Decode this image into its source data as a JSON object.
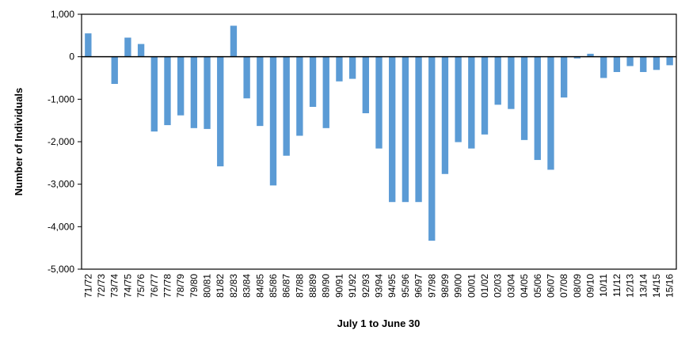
{
  "chart_data": {
    "type": "bar",
    "title": "",
    "xlabel": "July 1 to June 30",
    "ylabel": "Number of Individuals",
    "ylim": [
      -5000,
      1000
    ],
    "yticks": [
      1000,
      0,
      -1000,
      -2000,
      -3000,
      -4000,
      -5000
    ],
    "ytick_labels": [
      "1,000",
      "0",
      "-1,000",
      "-2,000",
      "-3,000",
      "-4,000",
      "-5,000"
    ],
    "grid": false,
    "legend": "none",
    "bar_color": "#5B9BD5",
    "categories": [
      "71/72",
      "72/73",
      "73/74",
      "74/75",
      "75/76",
      "76/77",
      "77/78",
      "78/79",
      "79/80",
      "80/81",
      "81/82",
      "82/83",
      "83/84",
      "84/85",
      "85/86",
      "86/87",
      "87/88",
      "88/89",
      "89/90",
      "90/91",
      "91/92",
      "92/93",
      "93/94",
      "94/95",
      "95/96",
      "96/97",
      "97/98",
      "98/99",
      "99/00",
      "00/01",
      "01/02",
      "02/03",
      "03/04",
      "04/05",
      "05/06",
      "06/07",
      "07/08",
      "08/09",
      "09/10",
      "10/11",
      "11/12",
      "12/13",
      "13/14",
      "14/15",
      "15/16"
    ],
    "values": [
      550,
      0,
      -640,
      450,
      300,
      -1760,
      -1610,
      -1380,
      -1680,
      -1700,
      -2580,
      730,
      -980,
      -1630,
      -3030,
      -2330,
      -1860,
      -1180,
      -1680,
      -580,
      -520,
      -1330,
      -2160,
      -3420,
      -3420,
      -3420,
      -4330,
      -2760,
      -2010,
      -2160,
      -1830,
      -1130,
      -1230,
      -1960,
      -2430,
      -2660,
      -960,
      -40,
      70,
      -500,
      -360,
      -220,
      -360,
      -310,
      -200
    ]
  }
}
